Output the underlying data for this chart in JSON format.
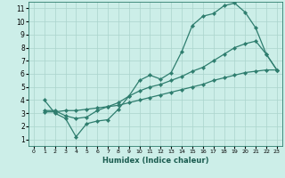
{
  "title": "",
  "xlabel": "Humidex (Indice chaleur)",
  "bg_color": "#cceee8",
  "line_color": "#2e7d6e",
  "grid_color": "#aad4cc",
  "xlim": [
    -0.5,
    23.5
  ],
  "ylim": [
    0.5,
    11.5
  ],
  "xticks": [
    0,
    1,
    2,
    3,
    4,
    5,
    6,
    7,
    8,
    9,
    10,
    11,
    12,
    13,
    14,
    15,
    16,
    17,
    18,
    19,
    20,
    21,
    22,
    23
  ],
  "yticks": [
    1,
    2,
    3,
    4,
    5,
    6,
    7,
    8,
    9,
    10,
    11
  ],
  "line1_x": [
    1,
    2,
    3,
    4,
    5,
    6,
    7,
    8,
    9,
    10,
    11,
    12,
    13,
    14,
    15,
    16,
    17,
    18,
    19,
    20,
    21,
    22,
    23
  ],
  "line1_y": [
    4.0,
    3.0,
    2.6,
    1.2,
    2.2,
    2.4,
    2.5,
    3.3,
    4.3,
    5.5,
    5.9,
    5.6,
    6.1,
    7.7,
    9.7,
    10.4,
    10.6,
    11.2,
    11.4,
    10.7,
    9.5,
    7.5,
    6.3
  ],
  "line2_x": [
    1,
    2,
    3,
    4,
    5,
    6,
    7,
    8,
    9,
    10,
    11,
    12,
    13,
    14,
    15,
    16,
    17,
    18,
    19,
    20,
    21,
    22,
    23
  ],
  "line2_y": [
    3.2,
    3.2,
    2.8,
    2.6,
    2.7,
    3.2,
    3.5,
    3.8,
    4.3,
    4.7,
    5.0,
    5.2,
    5.5,
    5.8,
    6.2,
    6.5,
    7.0,
    7.5,
    8.0,
    8.3,
    8.5,
    7.5,
    6.3
  ],
  "line3_x": [
    1,
    2,
    3,
    4,
    5,
    6,
    7,
    8,
    9,
    10,
    11,
    12,
    13,
    14,
    15,
    16,
    17,
    18,
    19,
    20,
    21,
    22,
    23
  ],
  "line3_y": [
    3.1,
    3.1,
    3.2,
    3.2,
    3.3,
    3.4,
    3.5,
    3.6,
    3.8,
    4.0,
    4.2,
    4.4,
    4.6,
    4.8,
    5.0,
    5.2,
    5.5,
    5.7,
    5.9,
    6.1,
    6.2,
    6.3,
    6.3
  ],
  "marker": "D",
  "markersize": 2.2,
  "linewidth": 0.9
}
